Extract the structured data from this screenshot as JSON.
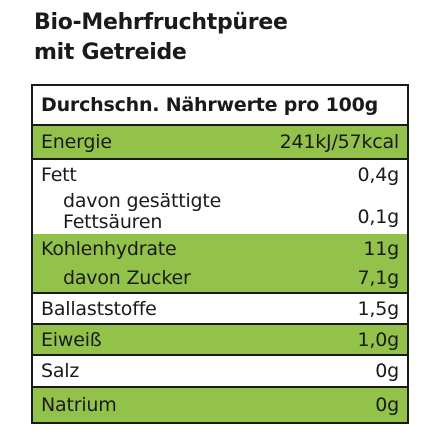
{
  "product": {
    "title_line1": "Bio-Mehrfruchtpüree",
    "title_line2": "mit Getreide"
  },
  "table": {
    "header": "Durchschn. Nährwerte pro 100g",
    "rows": [
      {
        "label": "Energie",
        "value": "241kJ/57kcal"
      },
      {
        "label": "Fett",
        "value": "0,4g"
      },
      {
        "label_line1": "davon gesättigte",
        "label_line2": "Fettsäuren",
        "value": "0,1g"
      },
      {
        "label": "Kohlenhydrate",
        "value": "11g"
      },
      {
        "label": "davon Zucker",
        "value": "7,1g"
      },
      {
        "label": "Ballaststoffe",
        "value": "1,5g"
      },
      {
        "label": "Eiweiß",
        "value": "1,0g"
      },
      {
        "label": "Salz",
        "value": "0g"
      },
      {
        "label": "Natrium",
        "value": "0g"
      }
    ]
  },
  "colors": {
    "accent_green": "#93c24a",
    "text": "#1a1a1a"
  }
}
